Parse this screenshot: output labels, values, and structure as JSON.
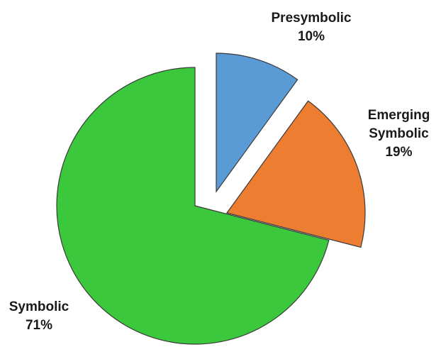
{
  "chart_data": {
    "type": "pie",
    "title": "",
    "categories": [
      "Presymbolic",
      "Emerging Symbolic",
      "Symbolic"
    ],
    "values": [
      10,
      19,
      71
    ],
    "labels": [
      {
        "name_lines": [
          "Presymbolic"
        ],
        "value_label": "10%"
      },
      {
        "name_lines": [
          "Emerging",
          "Symbolic"
        ],
        "value_label": "19%"
      },
      {
        "name_lines": [
          "Symbolic"
        ],
        "value_label": "71%"
      }
    ],
    "colors": [
      "#5b9bd5",
      "#ed7d31",
      "#3cc83c"
    ],
    "start_angle_deg": 0,
    "direction": "clockwise",
    "exploded": true,
    "legend": "none"
  }
}
